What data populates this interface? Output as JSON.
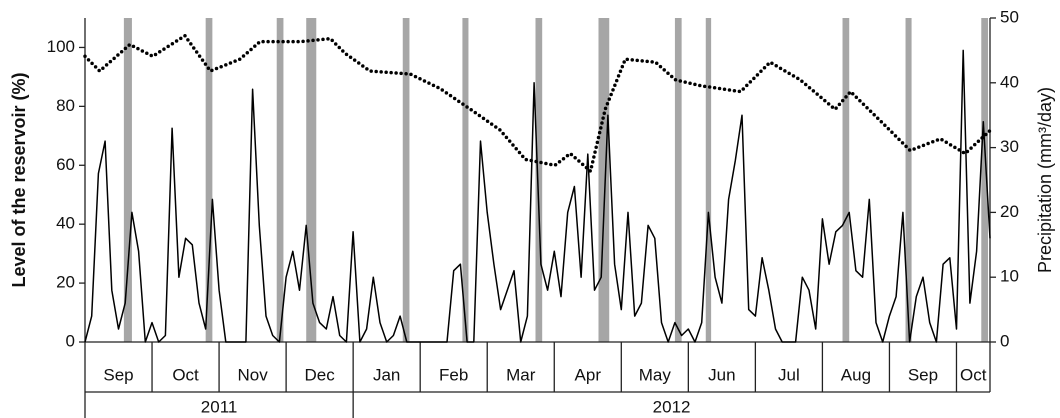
{
  "chart_data": {
    "type": "line",
    "ylabel": "Level of the reservoir (%)",
    "y2label": "Precipitation (mm³/day)",
    "categories": [
      "Sep",
      "Oct",
      "Nov",
      "Dec",
      "Jan",
      "Feb",
      "Mar",
      "Apr",
      "May",
      "Jun",
      "Jul",
      "Aug",
      "Sep",
      "Oct"
    ],
    "category_edges": [
      0,
      1,
      2,
      3,
      4,
      5,
      6,
      7,
      8,
      9,
      10,
      11,
      12,
      13,
      13.5
    ],
    "years": [
      {
        "label": "2011",
        "start": 0,
        "end": 4
      },
      {
        "label": "2012",
        "start": 4,
        "end": 13.5
      }
    ],
    "xlim": [
      0,
      13.5
    ],
    "ylim": [
      0,
      110
    ],
    "yticks": [
      0,
      20,
      40,
      60,
      80,
      100
    ],
    "y2lim": [
      0,
      50
    ],
    "y2ticks": [
      0,
      10,
      20,
      30,
      40,
      50
    ],
    "band_color": "#a6a6a6",
    "bands": [
      [
        0.58,
        0.7
      ],
      [
        1.8,
        1.9
      ],
      [
        2.86,
        2.96
      ],
      [
        3.3,
        3.45
      ],
      [
        4.74,
        4.84
      ],
      [
        5.63,
        5.72
      ],
      [
        6.72,
        6.82
      ],
      [
        7.66,
        7.82
      ],
      [
        8.8,
        8.9
      ],
      [
        9.26,
        9.34
      ],
      [
        11.3,
        11.4
      ],
      [
        12.24,
        12.33
      ],
      [
        13.37,
        13.47
      ]
    ],
    "series": [
      {
        "axis": "y",
        "style": "dotted",
        "color": "#000000",
        "x": [
          0,
          0.22,
          0.67,
          1.01,
          1.49,
          1.87,
          2.31,
          2.61,
          3.21,
          3.66,
          3.88,
          4.25,
          4.85,
          5.3,
          5.75,
          6.19,
          6.57,
          7.01,
          7.24,
          7.54,
          7.76,
          8.06,
          8.51,
          8.81,
          9.18,
          9.78,
          10.22,
          10.67,
          11.19,
          11.42,
          11.87,
          12.31,
          12.76,
          13.13,
          13.51
        ],
        "values": [
          97,
          92,
          101,
          97,
          104,
          92,
          96,
          102,
          102,
          103,
          98,
          92,
          91,
          86,
          79,
          72,
          62,
          60,
          64,
          58,
          79,
          96,
          95,
          89,
          87,
          85,
          95,
          89,
          79,
          85,
          75,
          65,
          69,
          64,
          72
        ]
      },
      {
        "axis": "y2",
        "style": "solid",
        "color": "#000000",
        "x": [
          0,
          0.1,
          0.2,
          0.3,
          0.4,
          0.5,
          0.6,
          0.7,
          0.8,
          0.9,
          1,
          1.1,
          1.2,
          1.3,
          1.4,
          1.5,
          1.6,
          1.7,
          1.8,
          1.9,
          2,
          2.1,
          2.2,
          2.3,
          2.4,
          2.5,
          2.6,
          2.7,
          2.8,
          2.9,
          3,
          3.1,
          3.2,
          3.3,
          3.4,
          3.5,
          3.6,
          3.7,
          3.8,
          3.9,
          4,
          4.1,
          4.2,
          4.3,
          4.4,
          4.5,
          4.6,
          4.7,
          4.8,
          4.9,
          5,
          5.1,
          5.2,
          5.3,
          5.4,
          5.5,
          5.6,
          5.7,
          5.8,
          5.9,
          6,
          6.1,
          6.2,
          6.3,
          6.4,
          6.5,
          6.6,
          6.7,
          6.8,
          6.9,
          7,
          7.1,
          7.2,
          7.3,
          7.4,
          7.5,
          7.6,
          7.7,
          7.8,
          7.9,
          8,
          8.1,
          8.2,
          8.3,
          8.4,
          8.5,
          8.6,
          8.7,
          8.8,
          8.9,
          9,
          9.1,
          9.2,
          9.3,
          9.4,
          9.5,
          9.6,
          9.7,
          9.8,
          9.9,
          10,
          10.1,
          10.2,
          10.3,
          10.4,
          10.5,
          10.6,
          10.7,
          10.8,
          10.9,
          11,
          11.1,
          11.2,
          11.3,
          11.4,
          11.5,
          11.6,
          11.7,
          11.8,
          11.9,
          12,
          12.1,
          12.2,
          12.3,
          12.4,
          12.5,
          12.6,
          12.7,
          12.8,
          12.9,
          13,
          13.1,
          13.2,
          13.3,
          13.4,
          13.5
        ],
        "values": [
          0,
          4,
          26,
          31,
          8,
          2,
          6,
          20,
          14,
          0,
          3,
          0,
          1,
          33,
          10,
          16,
          15,
          6,
          2,
          22,
          8,
          0,
          0,
          0,
          0,
          39,
          18,
          4,
          1,
          0,
          10,
          14,
          8,
          18,
          6,
          3,
          2,
          7,
          1,
          0,
          17,
          0,
          2,
          10,
          3,
          0,
          1,
          4,
          0,
          0,
          0,
          0,
          0,
          0,
          0,
          11,
          12,
          0,
          0,
          31,
          20,
          12,
          5,
          8,
          11,
          0,
          4,
          40,
          12,
          8,
          14,
          7,
          20,
          24,
          10,
          29,
          8,
          10,
          35,
          12,
          5,
          20,
          4,
          6,
          18,
          16,
          3,
          0,
          3,
          1,
          2,
          0,
          3,
          20,
          10,
          6,
          22,
          28,
          35,
          5,
          4,
          13,
          8,
          2,
          0,
          0,
          0,
          10,
          8,
          2,
          19,
          12,
          17,
          18,
          20,
          11,
          10,
          22,
          3,
          0,
          4,
          7,
          20,
          0,
          7,
          10,
          3,
          0,
          12,
          13,
          2,
          45,
          6,
          14,
          34,
          16
        ]
      }
    ]
  }
}
